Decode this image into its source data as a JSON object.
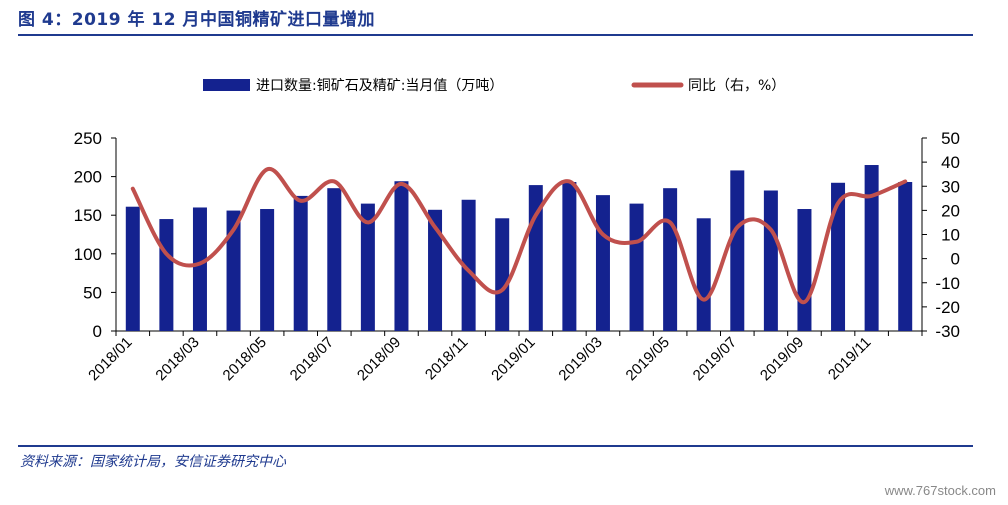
{
  "header": {
    "title": "图 4：2019 年 12 月中国铜精矿进口量增加"
  },
  "footer": {
    "source": "资料来源：国家统计局，安信证券研究中心",
    "watermark": "www.767stock.com"
  },
  "colors": {
    "bar": "#14228f",
    "line": "#c0504d",
    "accent": "#1f3a8f"
  },
  "chart_data": {
    "type": "bar",
    "categories": [
      "2018/01",
      "2018/02",
      "2018/03",
      "2018/04",
      "2018/05",
      "2018/06",
      "2018/07",
      "2018/08",
      "2018/09",
      "2018/10",
      "2018/11",
      "2018/12",
      "2019/01",
      "2019/02",
      "2019/03",
      "2019/04",
      "2019/05",
      "2019/06",
      "2019/07",
      "2019/08",
      "2019/09",
      "2019/10",
      "2019/11",
      "2019/12"
    ],
    "x_tick_labels": [
      "2018/01",
      "2018/03",
      "2018/05",
      "2018/07",
      "2018/09",
      "2018/11",
      "2019/01",
      "2019/03",
      "2019/05",
      "2019/07",
      "2019/09",
      "2019/11"
    ],
    "series": [
      {
        "name": "进口数量:铜矿石及精矿:当月值（万吨）",
        "type": "bar",
        "axis": "left",
        "values": [
          161,
          145,
          160,
          156,
          158,
          175,
          185,
          165,
          194,
          157,
          170,
          146,
          189,
          193,
          176,
          165,
          185,
          146,
          208,
          182,
          158,
          192,
          215,
          193
        ]
      },
      {
        "name": "同比（右，%）",
        "type": "line",
        "axis": "right",
        "values": [
          29,
          2,
          -2,
          12,
          37,
          24,
          32,
          15,
          31,
          13,
          -5,
          -13,
          18,
          32,
          10,
          7,
          15,
          -17,
          13,
          12,
          -18,
          23,
          26,
          32
        ]
      }
    ],
    "y_left": {
      "lim": [
        0,
        250
      ],
      "ticks": [
        "0",
        "50",
        "100",
        "150",
        "200",
        "250"
      ]
    },
    "y_right": {
      "lim": [
        -30,
        50
      ],
      "ticks": [
        "-30",
        "-20",
        "-10",
        "0",
        "10",
        "20",
        "30",
        "40",
        "50"
      ]
    },
    "legend_position": "top",
    "grid": false
  }
}
